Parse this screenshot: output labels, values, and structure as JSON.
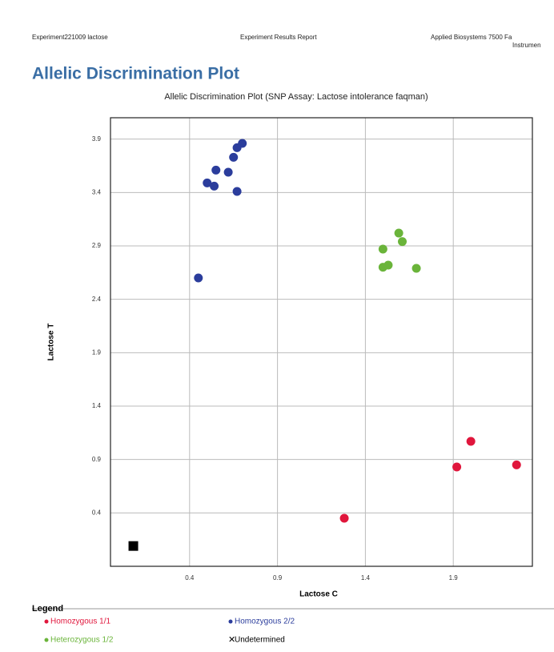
{
  "header": {
    "left": "Experiment221009 lactose",
    "center": "Experiment Results Report",
    "right": "Applied Biosystems 7500 Fa",
    "right_line2": "Instrumen"
  },
  "page_title": "Allelic Discrimination Plot",
  "chart_data": {
    "type": "scatter",
    "title": "Allelic Discrimination Plot (SNP Assay: Lactose intolerance faqman)",
    "xlabel": "Lactose C",
    "ylabel": "Lactose T",
    "xlim": [
      -0.05,
      2.35
    ],
    "ylim": [
      -0.1,
      4.1
    ],
    "xticks": [
      0.4,
      0.9,
      1.4,
      1.9
    ],
    "yticks": [
      0.4,
      0.9,
      1.4,
      1.9,
      2.4,
      2.9,
      3.4,
      3.9
    ],
    "grid": true,
    "legend_title": "Legend",
    "series": [
      {
        "name": "Homozygous 1/1",
        "color": "#e0163c",
        "x": [
          1.28,
          1.92,
          2.0,
          2.26
        ],
        "y": [
          0.35,
          0.83,
          1.07,
          0.85
        ]
      },
      {
        "name": "Homozygous 2/2",
        "color": "#2b3d9c",
        "x": [
          0.45,
          0.5,
          0.54,
          0.55,
          0.62,
          0.65,
          0.67,
          0.67,
          0.7
        ],
        "y": [
          2.6,
          3.49,
          3.46,
          3.61,
          3.59,
          3.73,
          3.41,
          3.82,
          3.86
        ]
      },
      {
        "name": "Heterozygous 1/2",
        "color": "#6ab43a",
        "x": [
          1.5,
          1.5,
          1.53,
          1.59,
          1.61,
          1.69
        ],
        "y": [
          2.87,
          2.7,
          2.72,
          3.02,
          2.94,
          2.69
        ]
      },
      {
        "name": "Undetermined",
        "color": "#000000",
        "marker": "square",
        "x": [
          0.08
        ],
        "y": [
          0.09
        ]
      }
    ]
  }
}
